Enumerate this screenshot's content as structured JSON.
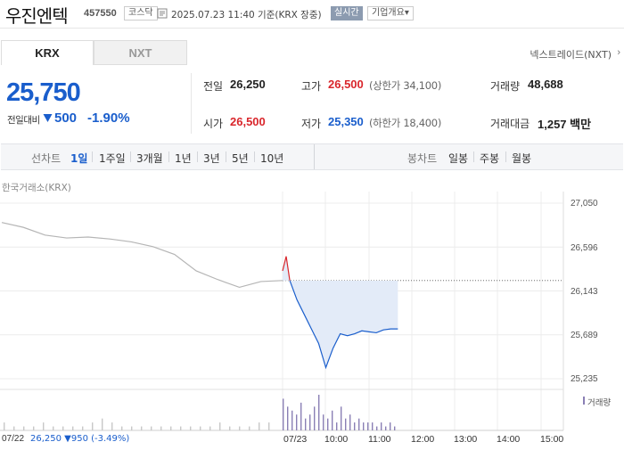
{
  "header": {
    "name": "우진엔텍",
    "code": "457550",
    "market_badge": "코스닥",
    "timestamp": "2025.07.23 11:40 기준(KRX 장중)",
    "realtime_button": "실시간",
    "company_info_button": "기업개요",
    "company_info_arrow": "▾"
  },
  "tabs": [
    {
      "label": "KRX",
      "active": true
    },
    {
      "label": "NXT",
      "active": false
    }
  ],
  "nextrade_link": "넥스트레이드(NXT)",
  "nextrade_arrow": "›",
  "quote": {
    "price": "25,750",
    "change_label": "전일대비",
    "change_value": "500",
    "change_pct": "-1.90%",
    "prev_close_label": "전일",
    "prev_close": "26,250",
    "open_label": "시가",
    "open": "26,500",
    "high_label": "고가",
    "high": "26,500",
    "upper_limit": "(상한가 34,100)",
    "low_label": "저가",
    "low": "25,350",
    "lower_limit": "(하한가 18,400)",
    "volume_label": "거래량",
    "volume": "48,688",
    "value_label": "거래대금",
    "value": "1,257 백만"
  },
  "period_bar": {
    "line_label": "선차트",
    "line_periods": [
      "1일",
      "1주일",
      "3개월",
      "1년",
      "3년",
      "5년",
      "10년"
    ],
    "active_period": "1일",
    "candle_label": "봉차트",
    "candle_periods": [
      "일봉",
      "주봉",
      "월봉"
    ]
  },
  "chart_area": {
    "market_label": "한국거래소(KRX)",
    "volume_legend": "거래량",
    "prev_day_date": "07/22",
    "prev_day_summary": "26,250 ▼950 (-3.49%)"
  },
  "colors": {
    "up": "#d9262c",
    "down": "#1a5ecc",
    "prev_day_line": "#b5b5b5",
    "fill": "#e3ebf8",
    "volume": "#8a7fb5"
  },
  "chart_data": {
    "type": "line",
    "yticks": [
      "27,050",
      "26,596",
      "26,143",
      "25,689",
      "25,235"
    ],
    "ylim": [
      25235,
      27050
    ],
    "xticks": [
      "07/23",
      "10:00",
      "11:00",
      "12:00",
      "13:00",
      "14:00",
      "15:00"
    ],
    "grid": true,
    "reference_price": 26250,
    "series": [
      {
        "x": [
          "07/22 09:00",
          "09:30",
          "10:00",
          "10:30",
          "11:00",
          "11:30",
          "12:00",
          "12:30",
          "13:00",
          "13:30",
          "14:00",
          "14:30",
          "15:00",
          "15:30"
        ],
        "values": [
          26850,
          26800,
          26720,
          26690,
          26700,
          26680,
          26650,
          26600,
          26520,
          26350,
          26260,
          26180,
          26240,
          26250
        ]
      },
      {
        "x": [
          "09:00",
          "09:05",
          "09:10",
          "09:15",
          "09:20",
          "09:30",
          "09:40",
          "09:50",
          "10:00",
          "10:10",
          "10:20",
          "10:30",
          "10:40",
          "10:50",
          "11:00",
          "11:10",
          "11:20",
          "11:30",
          "11:40"
        ],
        "values": [
          26350,
          26500,
          26250,
          26150,
          26050,
          25900,
          25750,
          25600,
          25350,
          25550,
          25700,
          25680,
          25700,
          25730,
          25720,
          25710,
          25740,
          25750,
          25750
        ]
      }
    ],
    "volume": [
      2,
      1,
      1,
      1,
      2,
      1,
      1,
      1,
      1,
      2,
      3,
      2,
      1,
      1,
      1,
      1,
      1,
      1,
      1,
      1,
      1,
      1,
      2,
      1,
      1,
      1,
      2,
      2,
      8,
      6,
      5,
      4,
      7,
      3,
      4,
      6,
      9,
      4,
      3,
      5,
      2,
      6,
      3,
      4,
      2,
      3,
      2,
      2,
      2,
      1,
      2,
      1,
      2,
      1
    ]
  }
}
